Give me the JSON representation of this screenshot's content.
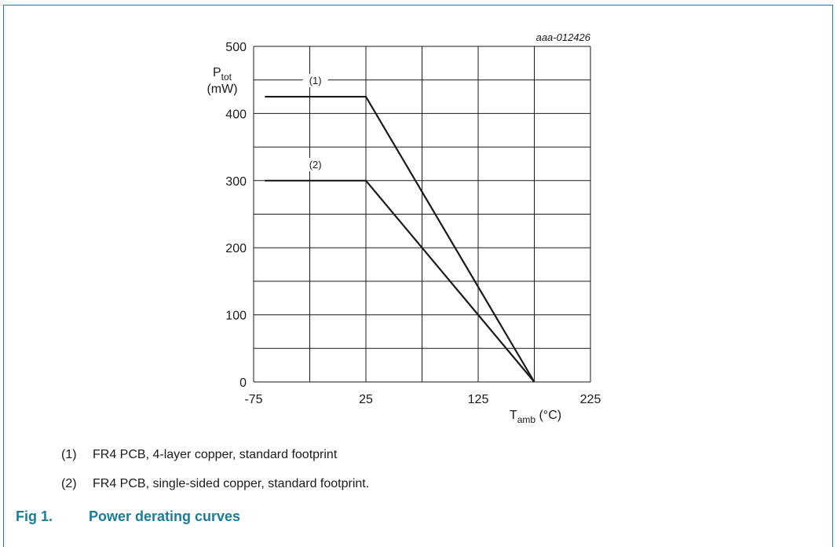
{
  "colors": {
    "frame": "#1d7fa0",
    "caption": "#197d9a",
    "grid": "#1a1a1a",
    "curve": "#1a1a1a"
  },
  "chart_data": {
    "type": "line",
    "figure_id": "aaa-012426",
    "ylabel": {
      "main": "P",
      "sub": "tot",
      "unit": "(mW)"
    },
    "xlabel": {
      "main": "T",
      "sub": "amb",
      "unit": " (°C)"
    },
    "xlim": [
      -75,
      225
    ],
    "ylim": [
      0,
      500
    ],
    "xticks": [
      "-75",
      "25",
      "125",
      "225"
    ],
    "yticks": [
      "0",
      "100",
      "200",
      "300",
      "400",
      "500"
    ],
    "grid": true,
    "series": [
      {
        "name": "(1)",
        "x": [
          -65,
          25,
          175
        ],
        "y": [
          425,
          425,
          0
        ]
      },
      {
        "name": "(2)",
        "x": [
          -65,
          25,
          175
        ],
        "y": [
          300,
          300,
          0
        ]
      }
    ]
  },
  "notes": [
    {
      "num": "(1)",
      "text": "FR4 PCB, 4-layer copper, standard footprint"
    },
    {
      "num": "(2)",
      "text": "FR4 PCB, single-sided copper, standard footprint."
    }
  ],
  "caption": {
    "label": "Fig 1.",
    "title": "Power derating curves"
  }
}
